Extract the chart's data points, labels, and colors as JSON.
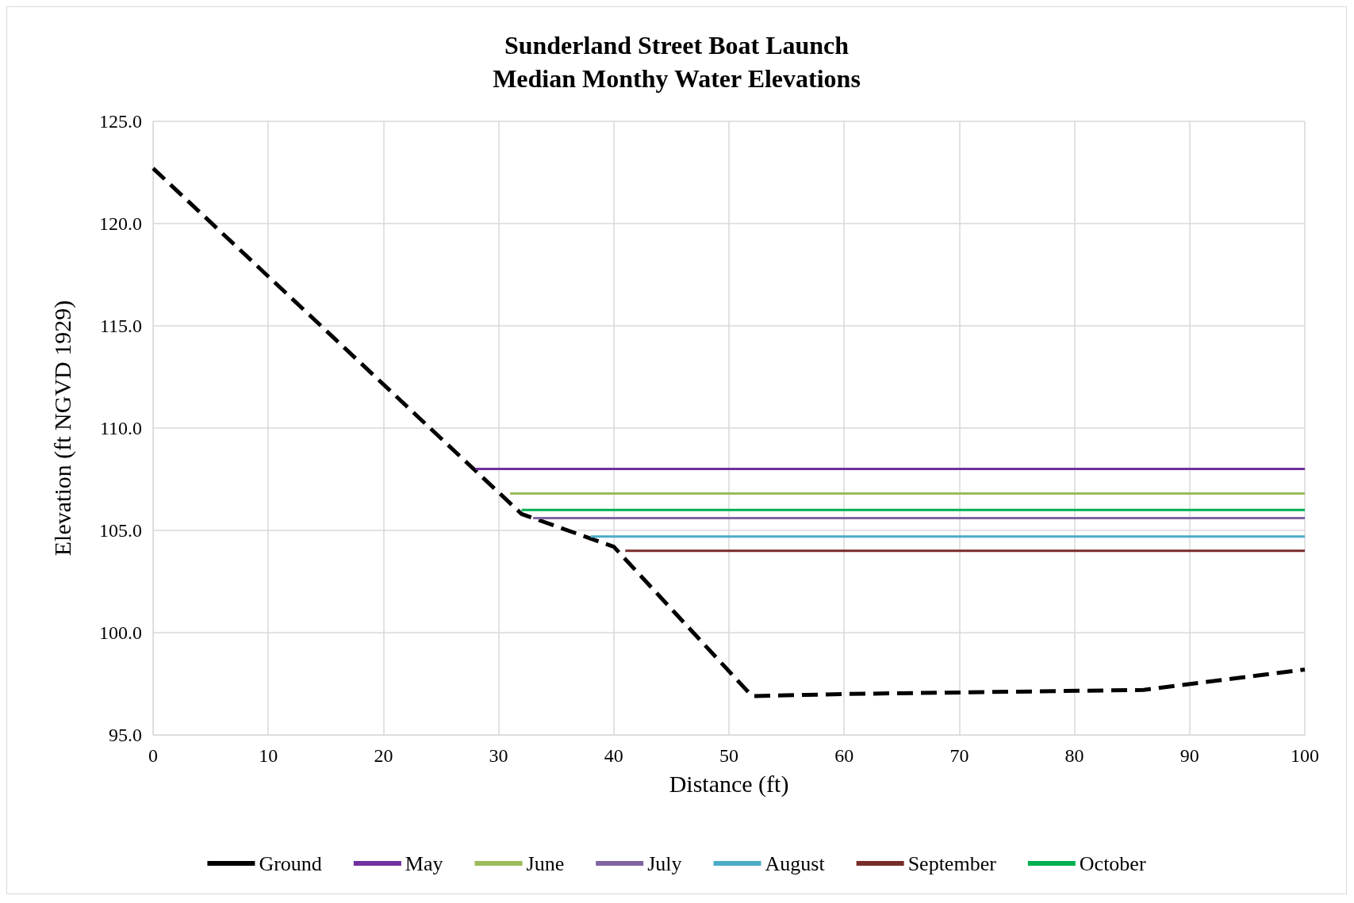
{
  "chart_data": {
    "type": "line",
    "title": "Sunderland Street Boat Launch\nMedian Monthy Water Elevations",
    "xlabel": "Distance (ft)",
    "ylabel": "Elevation (ft NGVD 1929)",
    "xlim": [
      0,
      100
    ],
    "xticks": [
      0,
      10,
      20,
      30,
      40,
      50,
      60,
      70,
      80,
      90,
      100
    ],
    "ylim": [
      95,
      125
    ],
    "yticks": [
      {
        "value": 95,
        "label": "95.0"
      },
      {
        "value": 100,
        "label": "100.0"
      },
      {
        "value": 105,
        "label": "105.0"
      },
      {
        "value": 110,
        "label": "110.0"
      },
      {
        "value": 115,
        "label": "115.0"
      },
      {
        "value": 120,
        "label": "120.0"
      },
      {
        "value": 125,
        "label": "125.0"
      }
    ],
    "grid": true,
    "legend": "bottom",
    "marker": "none",
    "series": [
      {
        "name": "Ground",
        "color": "#000000",
        "line_style": "dashed",
        "x": [
          0,
          32,
          40,
          52,
          60,
          86,
          100
        ],
        "values": [
          122.7,
          105.8,
          104.2,
          96.9,
          97.0,
          97.2,
          98.2
        ]
      },
      {
        "name": "May",
        "color": "#7030a0",
        "x": [
          28,
          100
        ],
        "values": [
          108.0,
          108.0
        ]
      },
      {
        "name": "June",
        "color": "#9bbb59",
        "x": [
          31,
          100
        ],
        "values": [
          106.8,
          106.8
        ]
      },
      {
        "name": "July",
        "color": "#8064a2",
        "x": [
          33,
          100
        ],
        "values": [
          105.6,
          105.6
        ]
      },
      {
        "name": "August",
        "color": "#4bacc6",
        "x": [
          38,
          100
        ],
        "values": [
          104.7,
          104.7
        ]
      },
      {
        "name": "September",
        "color": "#772c2a",
        "x": [
          41,
          100
        ],
        "values": [
          104.0,
          104.0
        ]
      },
      {
        "name": "October",
        "color": "#00b050",
        "x": [
          32,
          100
        ],
        "values": [
          106.0,
          106.0
        ]
      }
    ]
  }
}
